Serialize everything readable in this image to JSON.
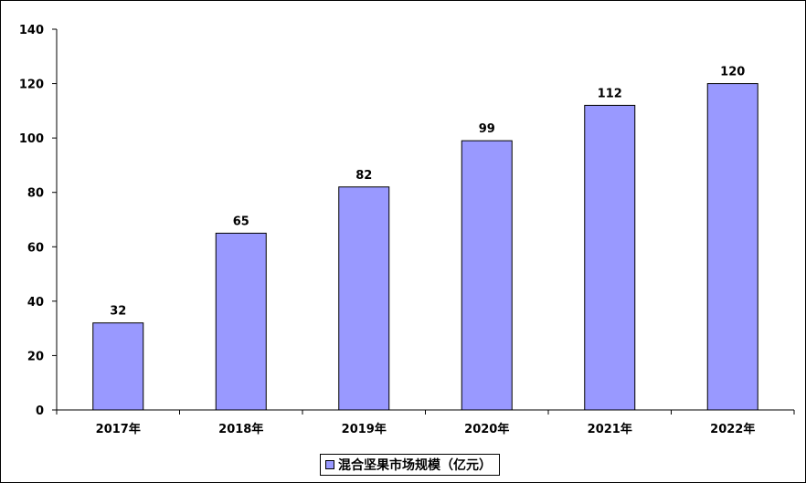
{
  "chart_data": {
    "type": "bar",
    "categories": [
      "2017年",
      "2018年",
      "2019年",
      "2020年",
      "2021年",
      "2022年"
    ],
    "series": [
      {
        "name": "混合坚果市场规模（亿元）",
        "values": [
          32,
          65,
          82,
          99,
          112,
          120
        ]
      }
    ],
    "data_labels": [
      "32",
      "65",
      "82",
      "99",
      "112",
      "120"
    ],
    "ylim": [
      0,
      140
    ],
    "yticks": [
      0,
      20,
      40,
      60,
      80,
      100,
      120,
      140
    ],
    "title": "",
    "xlabel": "",
    "ylabel": "",
    "grid": false,
    "legend_position": "bottom",
    "colors": {
      "bar_fill": "#9999ff",
      "bar_stroke": "#000000",
      "axis": "#000000"
    }
  }
}
